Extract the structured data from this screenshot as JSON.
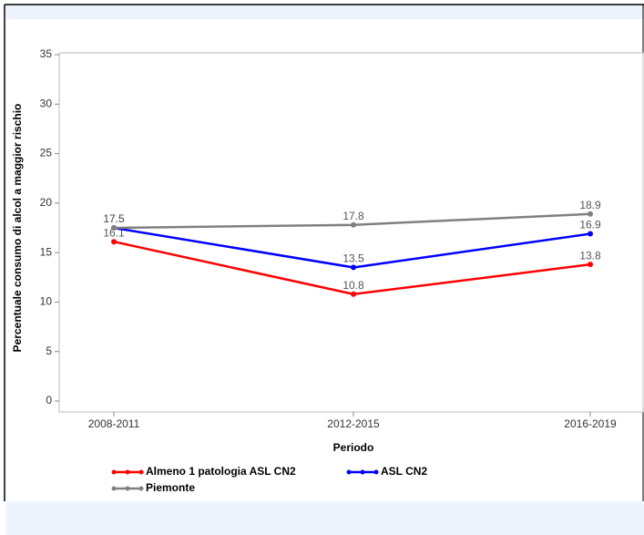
{
  "chart_data": {
    "type": "line",
    "x_label": "Periodo",
    "y_label": "Percentuale consumo di alcol a maggior rischio",
    "categories": [
      "2008-2011",
      "2012-2015",
      "2016-2019"
    ],
    "series": [
      {
        "name": "Almeno 1 patologia ASL CN2",
        "color": "#ff0000",
        "values": [
          16.1,
          10.8,
          13.8
        ]
      },
      {
        "name": "ASL CN2",
        "color": "#0000ff",
        "values": [
          17.5,
          13.5,
          16.9
        ]
      },
      {
        "name": "Piemonte",
        "color": "#808080",
        "values": [
          17.5,
          17.8,
          18.9
        ]
      }
    ],
    "ylim": [
      0,
      35
    ],
    "yticks": [
      0,
      5,
      10,
      15,
      20,
      25,
      30,
      35
    ],
    "grid": false
  }
}
